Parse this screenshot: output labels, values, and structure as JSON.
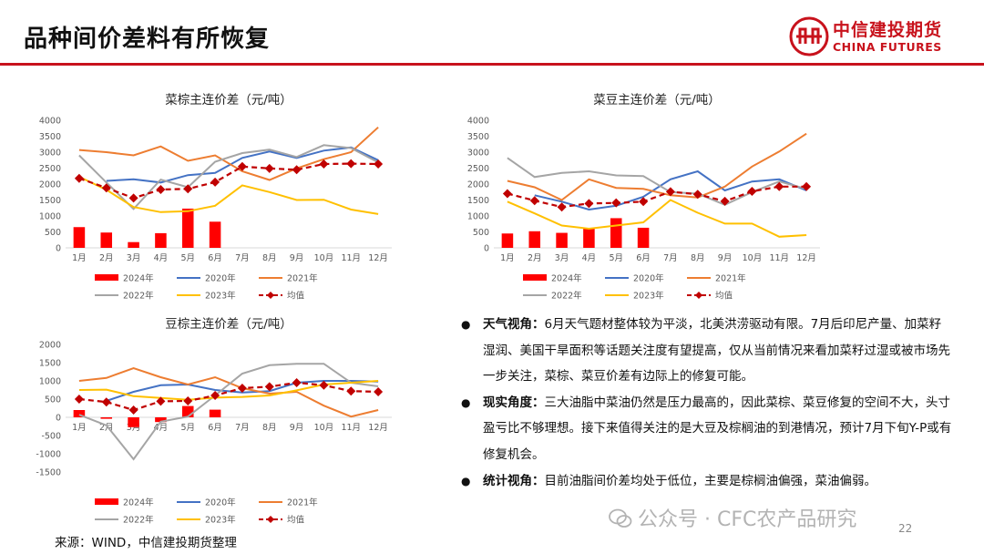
{
  "page": {
    "title": "品种间价差料有所恢复",
    "source": "来源：WIND，中信建投期货整理",
    "watermark": "公众号 · CFC农产品研究",
    "page_number": "22"
  },
  "logo": {
    "name_cn": "中信建投期货",
    "name_en": "CHINA FUTURES",
    "color": "#c8121c"
  },
  "colors": {
    "2024年": "#ff0000",
    "2020年": "#4472c4",
    "2021年": "#ed7d31",
    "2022年": "#a5a5a5",
    "2023年": "#ffc000",
    "均值": "#c00000"
  },
  "bullets": [
    {
      "head": "天气视角：",
      "text": "6月天气题材整体较为平淡，北美洪涝驱动有限。7月后印尼产量、加菜籽湿润、美国干旱面积等话题关注度有望提高，仅从当前情况来看加菜籽过湿或被市场先一步关注，菜棕、菜豆价差有边际上的修复可能。"
    },
    {
      "head": "现实角度：",
      "text": "三大油脂中菜油仍然是压力最高的，因此菜棕、菜豆修复的空间不大，头寸盈亏比不够理想。接下来值得关注的是大豆及棕榈油的到港情况，预计7月下旬Y-P或有修复机会。"
    },
    {
      "head": "统计视角：",
      "text": "目前油脂间价差均处于低位，主要是棕榈油偏强，菜油偏弱。"
    }
  ],
  "chart_data": [
    {
      "type": "bar+line",
      "title": "菜棕主连价差（元/吨）",
      "categories": [
        "1月",
        "2月",
        "3月",
        "4月",
        "5月",
        "6月",
        "7月",
        "8月",
        "9月",
        "10月",
        "11月",
        "12月"
      ],
      "ylim": [
        0,
        4000
      ],
      "yticks": [
        0,
        500,
        1000,
        1500,
        2000,
        2500,
        3000,
        3500,
        4000
      ],
      "bar_series": {
        "name": "2024年",
        "values": [
          650,
          480,
          180,
          460,
          1230,
          820
        ]
      },
      "series": [
        {
          "name": "2020年",
          "values": [
            null,
            2100,
            2150,
            2050,
            2280,
            2350,
            2820,
            3020,
            2820,
            3050,
            3150,
            2750
          ]
        },
        {
          "name": "2021年",
          "values": [
            3070,
            3000,
            2900,
            3180,
            2730,
            2900,
            2400,
            2130,
            2490,
            2780,
            3000,
            3780
          ]
        },
        {
          "name": "2022年",
          "values": [
            2900,
            2050,
            1220,
            2140,
            1900,
            2700,
            2970,
            3080,
            2850,
            3220,
            3130,
            2680
          ]
        },
        {
          "name": "2023年",
          "values": [
            2230,
            1820,
            1280,
            1120,
            1150,
            1320,
            1960,
            1750,
            1500,
            1510,
            1200,
            1060
          ]
        },
        {
          "name": "均值",
          "values": [
            2180,
            1880,
            1560,
            1830,
            1850,
            2060,
            2550,
            2490,
            2450,
            2630,
            2640,
            2630
          ],
          "style": "dashed-diamond"
        }
      ]
    },
    {
      "type": "bar+line",
      "title": "菜豆主连价差（元/吨）",
      "categories": [
        "1月",
        "2月",
        "3月",
        "4月",
        "5月",
        "6月",
        "7月",
        "8月",
        "9月",
        "10月",
        "11月",
        "12月"
      ],
      "ylim": [
        0,
        4000
      ],
      "yticks": [
        0,
        500,
        1000,
        1500,
        2000,
        2500,
        3000,
        3500,
        4000
      ],
      "bar_series": {
        "name": "2024年",
        "values": [
          450,
          520,
          470,
          600,
          930,
          630
        ]
      },
      "series": [
        {
          "name": "2020年",
          "values": [
            null,
            1650,
            1450,
            1200,
            1320,
            1600,
            2150,
            2400,
            1800,
            2080,
            2150,
            1800
          ]
        },
        {
          "name": "2021年",
          "values": [
            2100,
            1900,
            1500,
            2150,
            1880,
            1850,
            1650,
            1580,
            1920,
            2550,
            3020,
            3580
          ]
        },
        {
          "name": "2022年",
          "values": [
            2820,
            2220,
            2350,
            2400,
            2270,
            2250,
            1750,
            1700,
            1350,
            1750,
            2080,
            1850
          ]
        },
        {
          "name": "2023年",
          "values": [
            1450,
            1080,
            700,
            600,
            700,
            800,
            1500,
            1100,
            760,
            760,
            350,
            400
          ]
        },
        {
          "name": "均值",
          "values": [
            1700,
            1480,
            1280,
            1390,
            1410,
            1450,
            1760,
            1680,
            1460,
            1770,
            1920,
            1920
          ],
          "style": "dashed-diamond"
        }
      ]
    },
    {
      "type": "bar+line",
      "title": "豆棕主连价差（元/吨）",
      "categories": [
        "1月",
        "2月",
        "3月",
        "4月",
        "5月",
        "6月",
        "7月",
        "8月",
        "9月",
        "10月",
        "11月",
        "12月"
      ],
      "ylim": [
        -1500,
        2000
      ],
      "yticks": [
        -1500,
        -1000,
        -500,
        0,
        500,
        1000,
        1500,
        2000
      ],
      "bar_series": {
        "name": "2024年",
        "values": [
          200,
          -40,
          -270,
          -130,
          310,
          210
        ]
      },
      "series": [
        {
          "name": "2020年",
          "values": [
            null,
            450,
            700,
            880,
            900,
            750,
            680,
            720,
            950,
            1000,
            1000,
            980
          ]
        },
        {
          "name": "2021年",
          "values": [
            1000,
            1080,
            1350,
            1100,
            900,
            1100,
            800,
            650,
            700,
            320,
            20,
            200
          ]
        },
        {
          "name": "2022年",
          "values": [
            70,
            -220,
            -1150,
            -120,
            20,
            600,
            1200,
            1430,
            1470,
            1470,
            950,
            850
          ]
        },
        {
          "name": "2023年",
          "values": [
            750,
            760,
            580,
            530,
            480,
            540,
            560,
            600,
            740,
            900,
            950,
            1000
          ]
        },
        {
          "name": "均值",
          "values": [
            500,
            420,
            200,
            440,
            450,
            600,
            800,
            840,
            950,
            880,
            720,
            700
          ],
          "style": "dashed-diamond"
        }
      ]
    }
  ]
}
